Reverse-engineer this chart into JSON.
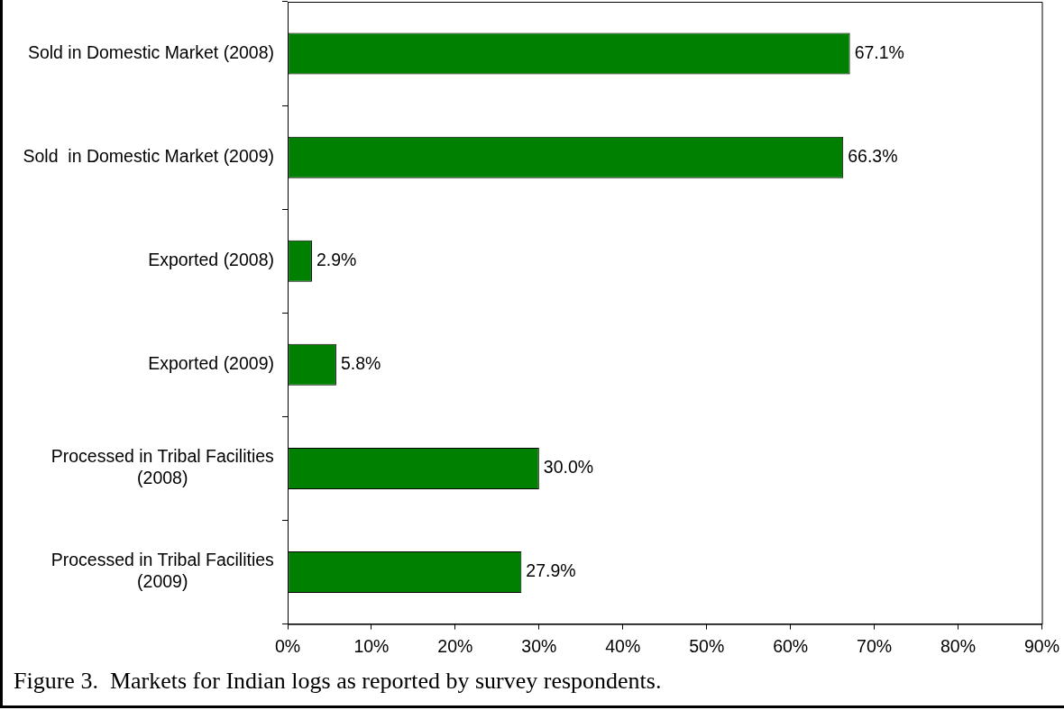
{
  "chart_data": {
    "type": "bar",
    "orientation": "horizontal",
    "categories": [
      "Sold in Domestic Market (2008)",
      "Sold  in Domestic Market (2009)",
      "Exported (2008)",
      "Exported (2009)",
      "Processed in Tribal Facilities (2008)",
      "Processed in Tribal Facilities (2009)"
    ],
    "values": [
      67.1,
      66.3,
      2.9,
      5.8,
      30.0,
      27.9
    ],
    "color": "#008000",
    "value_labels": [
      "67.1%",
      "66.3%",
      "2.9%",
      "5.8%",
      "30.0%",
      "27.9%"
    ],
    "xlim": [
      0,
      90
    ],
    "xticks": [
      {
        "value": 0,
        "label": "0%"
      },
      {
        "value": 10,
        "label": "10%"
      },
      {
        "value": 20,
        "label": "20%"
      },
      {
        "value": 30,
        "label": "30%"
      },
      {
        "value": 40,
        "label": "40%"
      },
      {
        "value": 50,
        "label": "50%"
      },
      {
        "value": 60,
        "label": "60%"
      },
      {
        "value": 70,
        "label": "70%"
      },
      {
        "value": 80,
        "label": "80%"
      },
      {
        "value": 90,
        "label": "90%"
      }
    ],
    "grid": false,
    "legend": false,
    "annotations": [
      "Figure 3.  Markets for Indian logs as reported by survey respondents."
    ]
  }
}
